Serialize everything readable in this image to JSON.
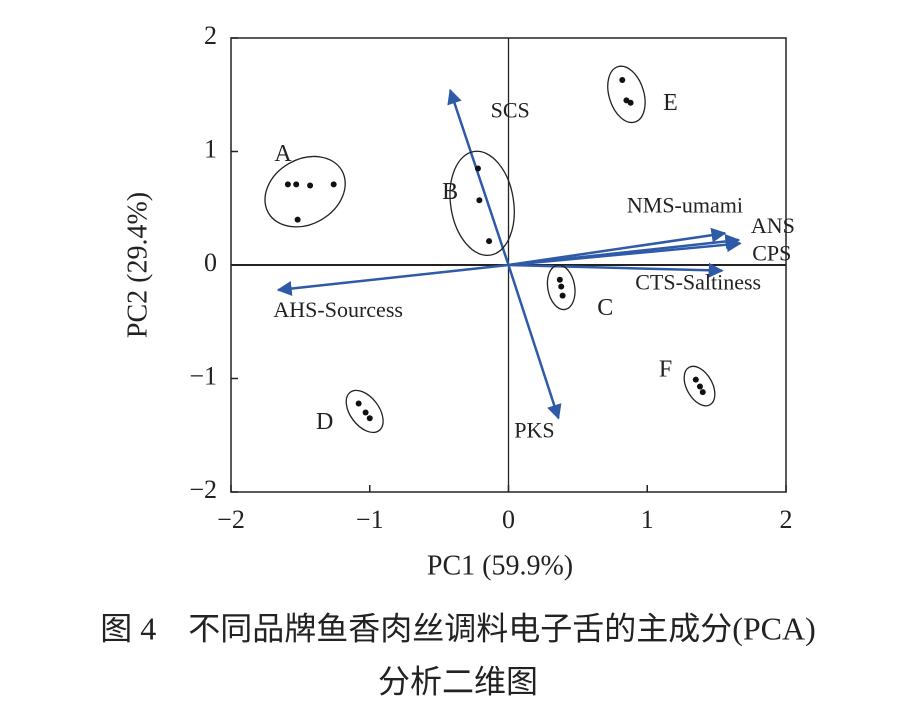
{
  "chart_data": {
    "type": "biplot",
    "xlabel": "PC1 (59.9%)",
    "ylabel": "PC2 (29.4%)",
    "xlim": [
      -2,
      2
    ],
    "ylim": [
      -2,
      2
    ],
    "xticks": [
      {
        "value": -2,
        "label": "−2"
      },
      {
        "value": -1,
        "label": "−1"
      },
      0,
      1,
      2
    ],
    "yticks": [
      {
        "value": -2,
        "label": "−2"
      },
      {
        "value": -1,
        "label": "−1"
      },
      0,
      1,
      2
    ],
    "point_color": "#111111",
    "vector_color": "#2e5aa8",
    "groups": [
      {
        "name": "A",
        "x": [
          -1.59,
          -1.53,
          -1.43,
          -1.26,
          -1.52
        ],
        "y": [
          0.71,
          0.71,
          0.7,
          0.71,
          0.4
        ]
      },
      {
        "name": "B",
        "x": [
          -0.22,
          -0.21,
          -0.14
        ],
        "y": [
          0.85,
          0.57,
          0.21
        ]
      },
      {
        "name": "C",
        "x": [
          0.37,
          0.38,
          0.39
        ],
        "y": [
          -0.13,
          -0.19,
          -0.27
        ]
      },
      {
        "name": "D",
        "x": [
          -1.08,
          -1.03,
          -1.0
        ],
        "y": [
          -1.22,
          -1.3,
          -1.35
        ]
      },
      {
        "name": "E",
        "x": [
          0.82,
          0.85,
          0.88
        ],
        "y": [
          1.63,
          1.45,
          1.43
        ]
      },
      {
        "name": "F",
        "x": [
          1.35,
          1.38,
          1.4
        ],
        "y": [
          -1.01,
          -1.07,
          -1.12
        ]
      }
    ],
    "loadings": [
      {
        "name": "SCS",
        "x": -0.42,
        "y": 1.54
      },
      {
        "name": "NMS-umami",
        "x": 1.56,
        "y": 0.28
      },
      {
        "name": "ANS",
        "x": 1.66,
        "y": 0.22
      },
      {
        "name": "CPS",
        "x": 1.67,
        "y": 0.19
      },
      {
        "name": "CTS-Saltiness",
        "x": 1.54,
        "y": -0.05
      },
      {
        "name": "AHS-Sourcess",
        "x": -1.66,
        "y": -0.22
      },
      {
        "name": "PKS",
        "x": 0.36,
        "y": -1.35
      }
    ],
    "caption": [
      "图 4　不同品牌鱼香肉丝调料电子舌的主成分(PCA)",
      "分析二维图"
    ]
  }
}
